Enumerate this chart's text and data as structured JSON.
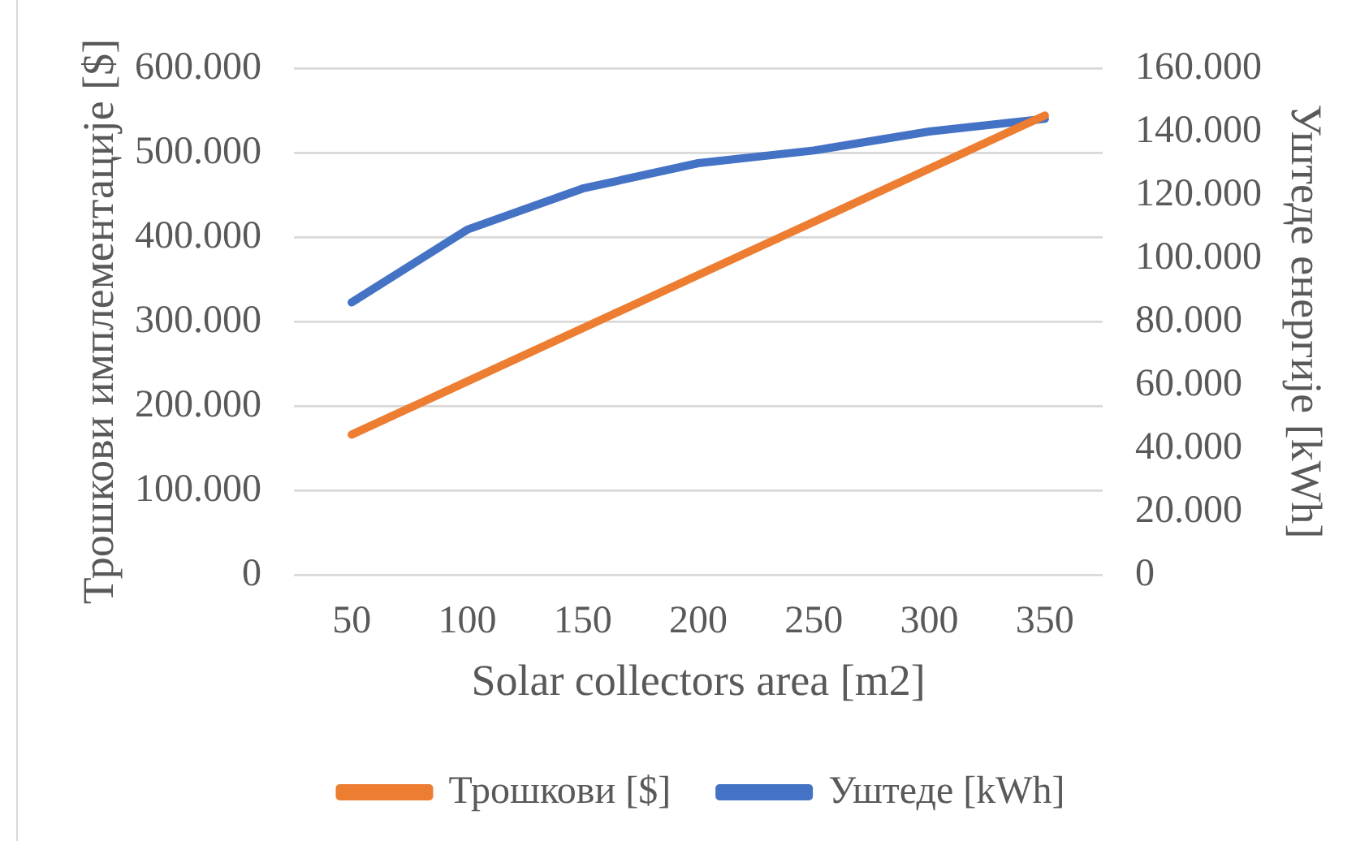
{
  "chart_data": {
    "type": "line",
    "xlabel": "Solar collectors area [m2]",
    "ylabel": "Трошкови имплементације [$]",
    "y2label": "Уштеде енергије [kWh]",
    "categories": [
      "50",
      "100",
      "150",
      "200",
      "250",
      "300",
      "350"
    ],
    "series": [
      {
        "name": "Трошкови [$]",
        "color": "#ed7d31",
        "values": [
          166000,
          229000,
          292000,
          355000,
          418000,
          481000,
          544000
        ]
      },
      {
        "name": "Уштеде [kWh]",
        "color": "#4472c4",
        "axis": "y2",
        "values": [
          86000,
          109000,
          122000,
          130000,
          134000,
          140000,
          144000
        ]
      }
    ],
    "ylim": [
      0,
      600000
    ],
    "yticks": [
      0,
      {
        "value": 100000,
        "label": "100.000"
      },
      {
        "value": 200000,
        "label": "200.000"
      },
      {
        "value": 300000,
        "label": "300.000"
      },
      {
        "value": 400000,
        "label": "400.000"
      },
      {
        "value": 500000,
        "label": "500.000"
      },
      {
        "value": 600000,
        "label": "600.000"
      }
    ],
    "y2lim": [
      0,
      160000
    ],
    "y2ticks": [
      0,
      {
        "value": 20000,
        "label": "20.000"
      },
      {
        "value": 40000,
        "label": "40.000"
      },
      {
        "value": 60000,
        "label": "60.000"
      },
      {
        "value": 80000,
        "label": "80.000"
      },
      {
        "value": 100000,
        "label": "100.000"
      },
      {
        "value": 120000,
        "label": "120.000"
      },
      {
        "value": 140000,
        "label": "140.000"
      },
      {
        "value": 160000,
        "label": "160.000"
      }
    ],
    "grid": "y",
    "legend": "bottom",
    "marker": "none",
    "line_style": "solid"
  }
}
